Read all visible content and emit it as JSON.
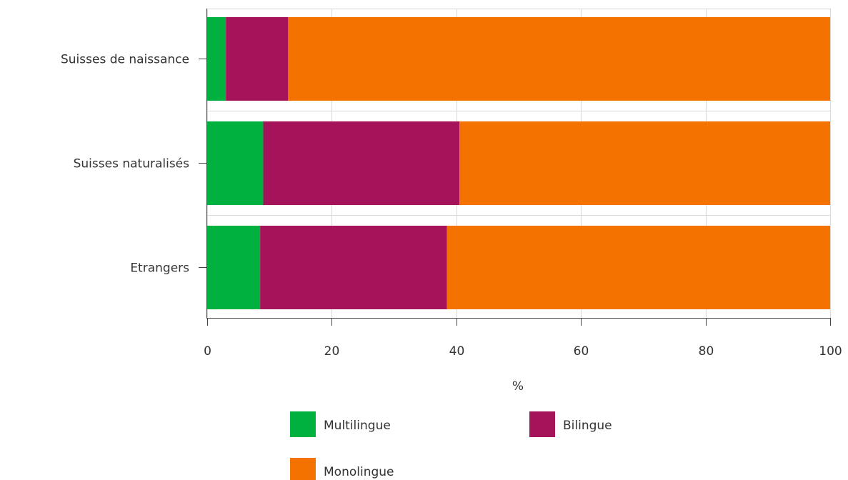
{
  "chart_data": {
    "type": "bar",
    "orientation": "horizontal",
    "stacked": true,
    "categories": [
      "Suisses de naissance",
      "Suisses naturalisés",
      "Etrangers"
    ],
    "series": [
      {
        "name": "Multilingue",
        "color": "#00b140",
        "values": [
          3,
          9,
          8.5
        ]
      },
      {
        "name": "Bilingue",
        "color": "#a5145a",
        "values": [
          10,
          31.5,
          30
        ]
      },
      {
        "name": "Monolingue",
        "color": "#f47300",
        "values": [
          87,
          59.5,
          61.5
        ]
      }
    ],
    "xlabel": "%",
    "xlim": [
      0,
      100
    ],
    "xticks": [
      0,
      20,
      40,
      60,
      80,
      100
    ],
    "grid": true,
    "legend_position": "bottom"
  }
}
